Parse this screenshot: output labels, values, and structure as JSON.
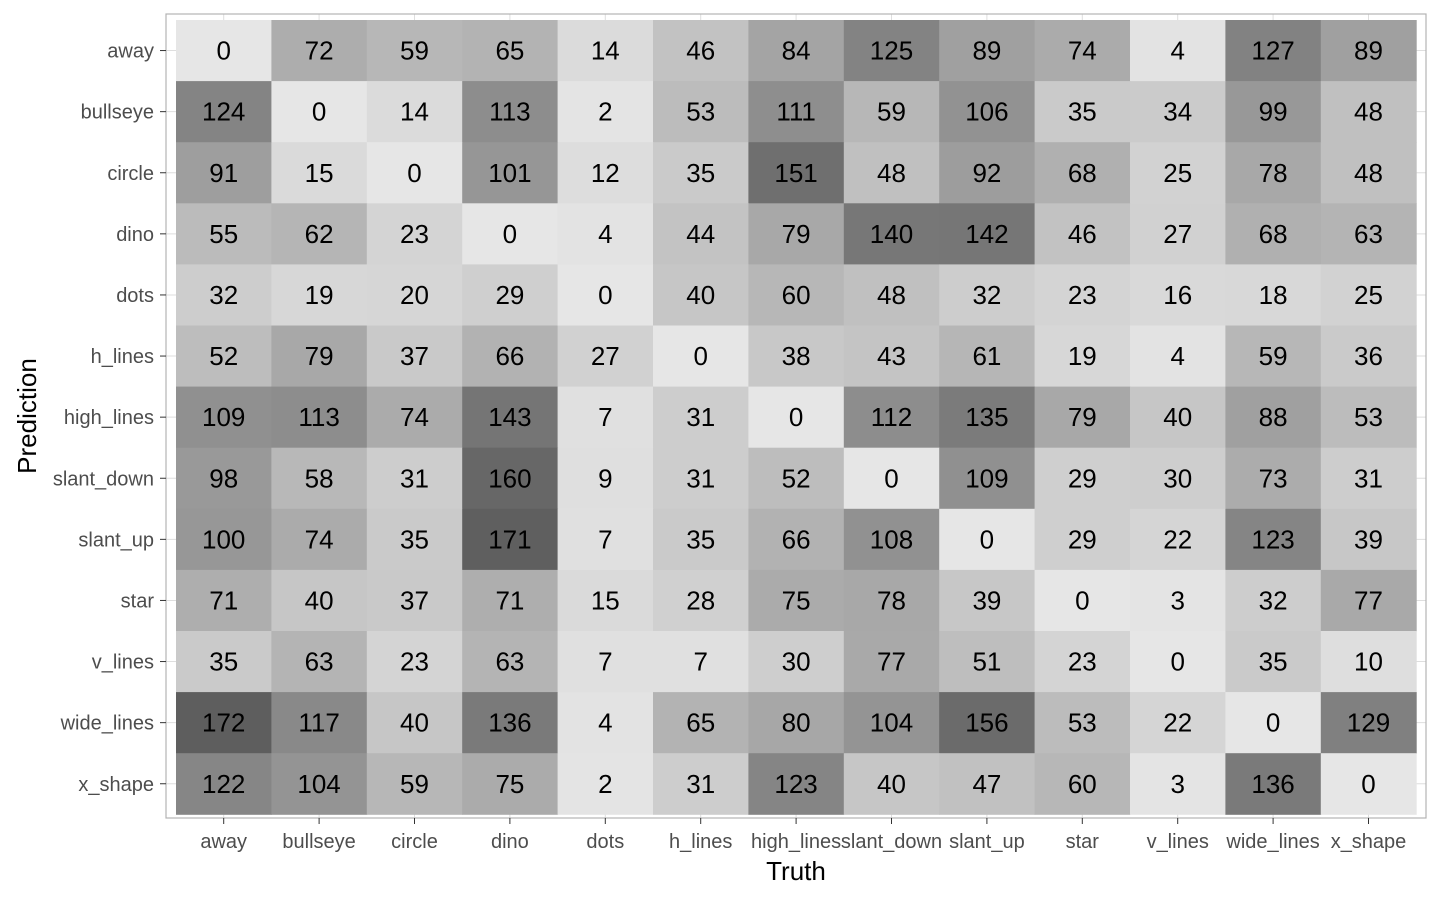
{
  "chart_data": {
    "type": "heatmap",
    "xlabel": "Truth",
    "ylabel": "Prediction",
    "x_categories": [
      "away",
      "bullseye",
      "circle",
      "dino",
      "dots",
      "h_lines",
      "high_lines",
      "slant_down",
      "slant_up",
      "star",
      "v_lines",
      "wide_lines",
      "x_shape"
    ],
    "y_categories": [
      "away",
      "bullseye",
      "circle",
      "dino",
      "dots",
      "h_lines",
      "high_lines",
      "slant_down",
      "slant_up",
      "star",
      "v_lines",
      "wide_lines",
      "x_shape"
    ],
    "values": [
      [
        0,
        72,
        59,
        65,
        14,
        46,
        84,
        125,
        89,
        74,
        4,
        127,
        89
      ],
      [
        124,
        0,
        14,
        113,
        2,
        53,
        111,
        59,
        106,
        35,
        34,
        99,
        48
      ],
      [
        91,
        15,
        0,
        101,
        12,
        35,
        151,
        48,
        92,
        68,
        25,
        78,
        48
      ],
      [
        55,
        62,
        23,
        0,
        4,
        44,
        79,
        140,
        142,
        46,
        27,
        68,
        63
      ],
      [
        32,
        19,
        20,
        29,
        0,
        40,
        60,
        48,
        32,
        23,
        16,
        18,
        25
      ],
      [
        52,
        79,
        37,
        66,
        27,
        0,
        38,
        43,
        61,
        19,
        4,
        59,
        36
      ],
      [
        109,
        113,
        74,
        143,
        7,
        31,
        0,
        112,
        135,
        79,
        40,
        88,
        53
      ],
      [
        98,
        58,
        31,
        160,
        9,
        31,
        52,
        0,
        109,
        29,
        30,
        73,
        31
      ],
      [
        100,
        74,
        35,
        171,
        7,
        35,
        66,
        108,
        0,
        29,
        22,
        123,
        39
      ],
      [
        71,
        40,
        37,
        71,
        15,
        28,
        75,
        78,
        39,
        0,
        3,
        32,
        77
      ],
      [
        35,
        63,
        23,
        63,
        7,
        7,
        30,
        77,
        51,
        23,
        0,
        35,
        10
      ],
      [
        172,
        117,
        40,
        136,
        4,
        65,
        80,
        104,
        156,
        53,
        22,
        0,
        129
      ],
      [
        122,
        104,
        59,
        75,
        2,
        31,
        123,
        40,
        47,
        60,
        3,
        136,
        0
      ]
    ],
    "color_low": "#e6e6e6",
    "color_high": "#5e5e5e",
    "grid": true,
    "legend": "none"
  }
}
